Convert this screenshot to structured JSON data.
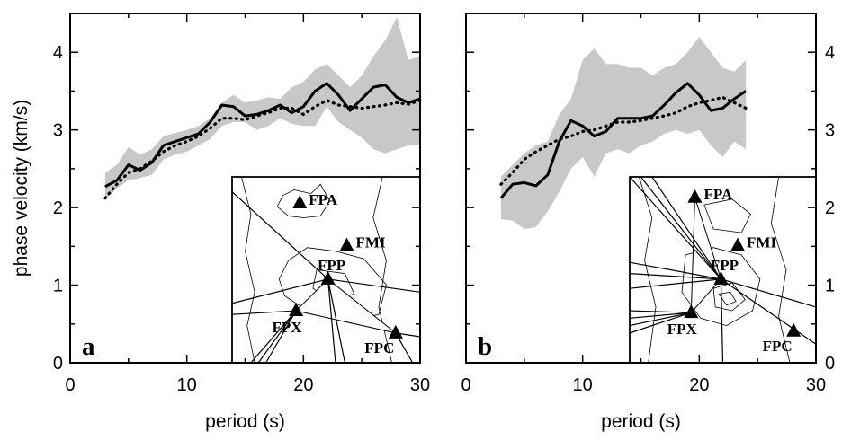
{
  "chart_data": [
    {
      "type": "line",
      "panel_label": "a",
      "xlabel": "period (s)",
      "ylabel": "phase velocity (km/s)",
      "xlim": [
        0,
        30
      ],
      "ylim": [
        0,
        4.5
      ],
      "xticks": [
        0,
        10,
        20,
        30
      ],
      "yticks": [
        0,
        1,
        2,
        3,
        4
      ],
      "band": {
        "x": [
          3,
          4,
          5,
          6,
          7,
          8,
          9,
          10,
          11,
          12,
          13,
          14,
          15,
          16,
          17,
          18,
          19,
          20,
          21,
          22,
          23,
          24,
          25,
          26,
          27,
          28,
          29,
          30
        ],
        "upper": [
          2.45,
          2.55,
          2.78,
          2.68,
          2.75,
          2.92,
          2.96,
          3.0,
          3.05,
          3.15,
          3.35,
          3.45,
          3.35,
          3.38,
          3.42,
          3.4,
          3.55,
          3.62,
          3.78,
          3.85,
          3.7,
          3.55,
          3.7,
          3.95,
          4.15,
          4.45,
          3.9,
          3.95
        ],
        "lower": [
          2.1,
          2.25,
          2.35,
          2.38,
          2.42,
          2.62,
          2.68,
          2.72,
          2.8,
          2.88,
          3.05,
          3.1,
          3.1,
          3.0,
          3.05,
          3.15,
          3.08,
          3.05,
          3.05,
          3.3,
          3.1,
          3.0,
          2.9,
          2.75,
          2.7,
          2.75,
          2.8,
          2.8
        ]
      },
      "series": [
        {
          "style": "solid",
          "x": [
            3,
            4,
            5,
            6,
            7,
            8,
            9,
            10,
            11,
            12,
            13,
            14,
            15,
            16,
            17,
            18,
            19,
            20,
            21,
            22,
            23,
            24,
            25,
            26,
            27,
            28,
            29,
            30
          ],
          "y": [
            2.27,
            2.35,
            2.55,
            2.48,
            2.58,
            2.8,
            2.85,
            2.9,
            2.95,
            3.1,
            3.32,
            3.3,
            3.18,
            3.2,
            3.25,
            3.32,
            3.22,
            3.3,
            3.5,
            3.6,
            3.45,
            3.25,
            3.4,
            3.55,
            3.58,
            3.42,
            3.35,
            3.4
          ]
        },
        {
          "style": "dotted",
          "x": [
            3,
            4,
            5,
            6,
            7,
            8,
            9,
            10,
            11,
            12,
            13,
            14,
            15,
            16,
            17,
            18,
            19,
            20,
            21,
            22,
            23,
            24,
            25,
            26,
            27,
            28,
            29,
            30
          ],
          "y": [
            2.12,
            2.3,
            2.45,
            2.5,
            2.6,
            2.72,
            2.8,
            2.85,
            2.92,
            3.02,
            3.15,
            3.15,
            3.13,
            3.18,
            3.22,
            3.28,
            3.28,
            3.2,
            3.3,
            3.38,
            3.32,
            3.3,
            3.28,
            3.3,
            3.32,
            3.35,
            3.33,
            3.38
          ]
        }
      ],
      "inset": {
        "stations": [
          {
            "label": "FPA",
            "x": 0.36,
            "y": 0.14
          },
          {
            "label": "FMI",
            "x": 0.61,
            "y": 0.37
          },
          {
            "label": "FPP",
            "x": 0.51,
            "y": 0.55
          },
          {
            "label": "FPX",
            "x": 0.34,
            "y": 0.72
          },
          {
            "label": "FPC",
            "x": 0.87,
            "y": 0.84
          }
        ]
      }
    },
    {
      "type": "line",
      "panel_label": "b",
      "xlabel": "period (s)",
      "xlim": [
        0,
        30
      ],
      "ylim": [
        0,
        4.5
      ],
      "xticks": [
        0,
        10,
        20,
        30
      ],
      "yticks": [
        0,
        1,
        2,
        3,
        4
      ],
      "band": {
        "x": [
          3,
          4,
          5,
          6,
          7,
          8,
          9,
          10,
          11,
          12,
          13,
          14,
          15,
          16,
          17,
          18,
          19,
          20,
          21,
          22,
          23,
          24
        ],
        "upper": [
          2.4,
          2.55,
          2.7,
          2.8,
          2.85,
          3.2,
          3.4,
          3.9,
          4.05,
          3.85,
          3.85,
          3.8,
          3.8,
          3.7,
          3.8,
          3.85,
          4.0,
          4.2,
          4.0,
          3.8,
          3.75,
          3.9
        ],
        "lower": [
          1.85,
          1.83,
          1.72,
          1.75,
          1.95,
          2.2,
          2.5,
          2.65,
          2.4,
          2.7,
          2.75,
          2.7,
          2.8,
          2.85,
          2.95,
          3.0,
          2.95,
          3.0,
          2.8,
          2.65,
          2.85,
          2.75
        ]
      },
      "series": [
        {
          "style": "solid",
          "x": [
            3,
            4,
            5,
            6,
            7,
            8,
            9,
            10,
            11,
            12,
            13,
            14,
            15,
            16,
            17,
            18,
            19,
            20,
            21,
            22,
            23,
            24
          ],
          "y": [
            2.12,
            2.3,
            2.32,
            2.28,
            2.42,
            2.85,
            3.12,
            3.05,
            2.92,
            2.98,
            3.15,
            3.15,
            3.15,
            3.18,
            3.32,
            3.48,
            3.6,
            3.45,
            3.25,
            3.28,
            3.4,
            3.5
          ]
        },
        {
          "style": "dotted",
          "x": [
            3,
            4,
            5,
            6,
            7,
            8,
            9,
            10,
            11,
            12,
            13,
            14,
            15,
            16,
            17,
            18,
            19,
            20,
            21,
            22,
            23,
            24
          ],
          "y": [
            2.3,
            2.45,
            2.62,
            2.72,
            2.8,
            2.88,
            2.92,
            2.98,
            3.0,
            3.05,
            3.1,
            3.1,
            3.12,
            3.15,
            3.18,
            3.22,
            3.3,
            3.35,
            3.38,
            3.42,
            3.35,
            3.28
          ]
        }
      ],
      "inset": {
        "stations": [
          {
            "label": "FPA",
            "x": 0.35,
            "y": 0.11
          },
          {
            "label": "FMI",
            "x": 0.58,
            "y": 0.37
          },
          {
            "label": "FPP",
            "x": 0.49,
            "y": 0.55
          },
          {
            "label": "FPX",
            "x": 0.33,
            "y": 0.73
          },
          {
            "label": "FPC",
            "x": 0.88,
            "y": 0.83
          }
        ]
      }
    }
  ]
}
